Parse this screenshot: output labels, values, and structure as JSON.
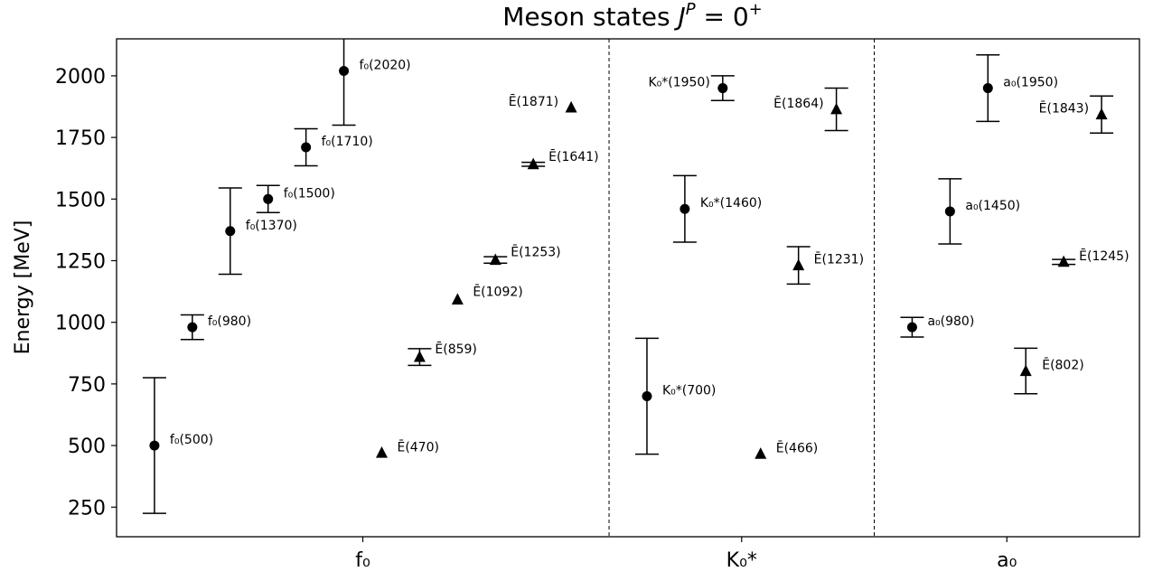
{
  "chart_data": {
    "type": "scatter",
    "title": "Meson states J^P = 0^+",
    "title_parts": {
      "prefix": "Meson states ",
      "J": "J",
      "P": "P",
      "eq": " = 0",
      "plus": "+"
    },
    "ylabel": "Energy [MeV]",
    "xlabel": "",
    "ylim": [
      130,
      2150
    ],
    "yticks": [
      250,
      500,
      750,
      1000,
      1250,
      1500,
      1750,
      2000
    ],
    "grid": false,
    "groups": [
      {
        "name": "f₀",
        "range": [
          0,
          13
        ]
      },
      {
        "name": "K₀*",
        "range": [
          13,
          20
        ]
      },
      {
        "name": "a₀",
        "range": [
          20,
          27
        ]
      }
    ],
    "dividers": [
      13,
      20
    ],
    "series": [
      {
        "marker": "circle",
        "points": [
          {
            "x": 1,
            "y": 500,
            "err_low": 225,
            "err_high": 775,
            "label": "f₀(500)"
          },
          {
            "x": 2,
            "y": 980,
            "err_low": 930,
            "err_high": 1030,
            "label": "f₀(980)"
          },
          {
            "x": 3,
            "y": 1370,
            "err_low": 1195,
            "err_high": 1545,
            "label": "f₀(1370)"
          },
          {
            "x": 4,
            "y": 1500,
            "err_low": 1445,
            "err_high": 1555,
            "label": "f₀(1500)"
          },
          {
            "x": 5,
            "y": 1710,
            "err_low": 1635,
            "err_high": 1785,
            "label": "f₀(1710)"
          },
          {
            "x": 6,
            "y": 2020,
            "err_low": 1800,
            "err_high": 2240,
            "label": "f₀(2020)"
          },
          {
            "x": 14,
            "y": 700,
            "err_low": 465,
            "err_high": 935,
            "label": "K₀*(700)"
          },
          {
            "x": 15,
            "y": 1460,
            "err_low": 1325,
            "err_high": 1595,
            "label": "K₀*(1460)"
          },
          {
            "x": 16,
            "y": 1950,
            "err_low": 1900,
            "err_high": 2000,
            "label": "K₀*(1950)"
          },
          {
            "x": 21,
            "y": 980,
            "err_low": 940,
            "err_high": 1020,
            "label": "a₀(980)"
          },
          {
            "x": 22,
            "y": 1450,
            "err_low": 1318,
            "err_high": 1582,
            "label": "a₀(1450)"
          },
          {
            "x": 23,
            "y": 1950,
            "err_low": 1815,
            "err_high": 2085,
            "label": "a₀(1950)"
          }
        ]
      },
      {
        "marker": "triangle",
        "points": [
          {
            "x": 7,
            "y": 470,
            "label": "Ē(470)"
          },
          {
            "x": 8,
            "y": 859,
            "err_low": 825,
            "err_high": 893,
            "label": "Ē(859)"
          },
          {
            "x": 9,
            "y": 1092,
            "label": "Ē(1092)"
          },
          {
            "x": 10,
            "y": 1253,
            "err_low": 1240,
            "err_high": 1266,
            "label": "Ē(1253)"
          },
          {
            "x": 11,
            "y": 1641,
            "err_low": 1633,
            "err_high": 1649,
            "label": "Ē(1641)"
          },
          {
            "x": 12,
            "y": 1871,
            "label": "Ē(1871)"
          },
          {
            "x": 17,
            "y": 466,
            "label": "Ē(466)"
          },
          {
            "x": 18,
            "y": 1231,
            "err_low": 1155,
            "err_high": 1307,
            "label": "Ē(1231)"
          },
          {
            "x": 19,
            "y": 1864,
            "err_low": 1778,
            "err_high": 1950,
            "label": "Ē(1864)"
          },
          {
            "x": 24,
            "y": 802,
            "err_low": 710,
            "err_high": 895,
            "label": "Ē(802)"
          },
          {
            "x": 25,
            "y": 1245,
            "err_low": 1235,
            "err_high": 1255,
            "label": "Ē(1245)"
          },
          {
            "x": 26,
            "y": 1843,
            "err_low": 1768,
            "err_high": 1918,
            "label": "Ē(1843)"
          }
        ]
      }
    ]
  }
}
